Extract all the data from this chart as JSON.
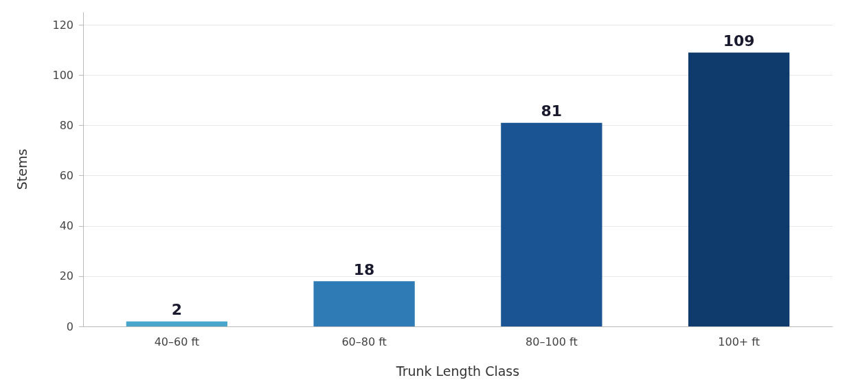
{
  "chart_data": {
    "type": "bar",
    "xlabel": "Trunk Length Class",
    "ylabel": "Stems",
    "categories": [
      "40–60 ft",
      "60–80 ft",
      "80–100 ft",
      "100+ ft"
    ],
    "values": [
      2,
      18,
      81,
      109
    ],
    "colors": [
      "#4ba6cc",
      "#2e7bb6",
      "#1b5492",
      "#0f3a6c"
    ],
    "ylim": [
      0,
      125
    ],
    "yticks": [
      0,
      20,
      40,
      60,
      80,
      100,
      120
    ],
    "grid": "y",
    "data_labels": true
  }
}
